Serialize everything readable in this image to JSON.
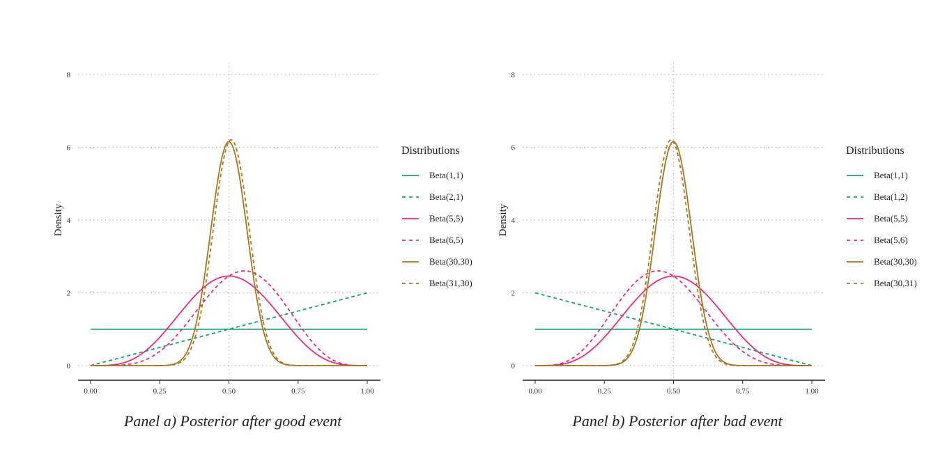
{
  "chart_data": [
    {
      "type": "line",
      "title": "Panel a) Posterior after good event",
      "xlabel": "",
      "ylabel": "Density",
      "xlim": [
        0,
        1
      ],
      "ylim": [
        0,
        8
      ],
      "x_ticks": [
        "0.00",
        "0.25",
        "0.50",
        "0.75",
        "1.00"
      ],
      "y_ticks": [
        "0",
        "2",
        "4",
        "6",
        "8"
      ],
      "grid": "dotted",
      "reference_line_x": 0.5,
      "legend_title": "Distributions",
      "legend_position": "right",
      "series": [
        {
          "name": "Beta(1,1)",
          "alpha": 1,
          "beta": 1,
          "color": "#1b9e77",
          "dash": "solid"
        },
        {
          "name": "Beta(2,1)",
          "alpha": 2,
          "beta": 1,
          "color": "#1b9e77",
          "dash": "dashed"
        },
        {
          "name": "Beta(5,5)",
          "alpha": 5,
          "beta": 5,
          "color": "#e7298a",
          "dash": "solid"
        },
        {
          "name": "Beta(6,5)",
          "alpha": 6,
          "beta": 5,
          "color": "#e7298a",
          "dash": "dashed"
        },
        {
          "name": "Beta(30,30)",
          "alpha": 30,
          "beta": 30,
          "color": "#a6761d",
          "dash": "solid"
        },
        {
          "name": "Beta(31,30)",
          "alpha": 31,
          "beta": 30,
          "color": "#a6761d",
          "dash": "dashed"
        }
      ]
    },
    {
      "type": "line",
      "title": "Panel b) Posterior after bad event",
      "xlabel": "",
      "ylabel": "Density",
      "xlim": [
        0,
        1
      ],
      "ylim": [
        0,
        8
      ],
      "x_ticks": [
        "0.00",
        "0.25",
        "0.50",
        "0.75",
        "1.00"
      ],
      "y_ticks": [
        "0",
        "2",
        "4",
        "6",
        "8"
      ],
      "grid": "dotted",
      "reference_line_x": 0.5,
      "legend_title": "Distributions",
      "legend_position": "right",
      "series": [
        {
          "name": "Beta(1,1)",
          "alpha": 1,
          "beta": 1,
          "color": "#1b9e77",
          "dash": "solid"
        },
        {
          "name": "Beta(1,2)",
          "alpha": 1,
          "beta": 2,
          "color": "#1b9e77",
          "dash": "dashed"
        },
        {
          "name": "Beta(5,5)",
          "alpha": 5,
          "beta": 5,
          "color": "#e7298a",
          "dash": "solid"
        },
        {
          "name": "Beta(5,6)",
          "alpha": 5,
          "beta": 6,
          "color": "#e7298a",
          "dash": "dashed"
        },
        {
          "name": "Beta(30,30)",
          "alpha": 30,
          "beta": 30,
          "color": "#a6761d",
          "dash": "solid"
        },
        {
          "name": "Beta(30,31)",
          "alpha": 30,
          "beta": 31,
          "color": "#a6761d",
          "dash": "dashed"
        }
      ]
    }
  ]
}
